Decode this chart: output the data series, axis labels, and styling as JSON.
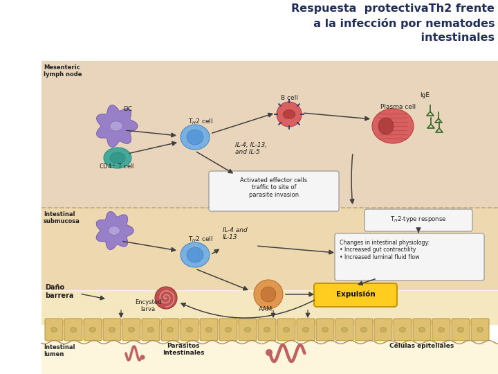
{
  "title_line1": "Respuesta  protectivaTh2 frente",
  "title_line2": "a la infección por nematodes",
  "title_line3": "intestinales",
  "title_color": "#1e2d5a",
  "title_fontsize": 11.5,
  "bg_white": "#ffffff",
  "separator_color": "#c8a878",
  "text_dark": "#202020",
  "worm_color": "#c06060",
  "arrow_color": "#404040"
}
